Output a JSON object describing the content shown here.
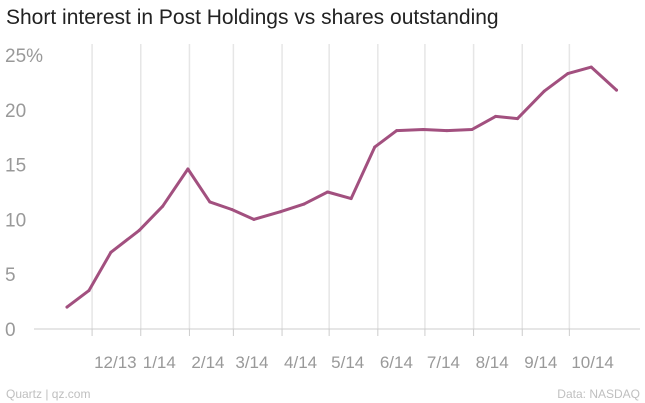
{
  "title": "Short interest in Post Holdings vs shares outstanding",
  "footer": {
    "credit": "Quartz | qz.com",
    "source": "Data: NASDAQ"
  },
  "colors": {
    "line": "#a2507f",
    "grid": "#e6e6e6",
    "axis": "#cccccc",
    "tick_text": "#999999"
  },
  "chart_data": {
    "type": "line",
    "title": "Short interest in Post Holdings vs shares outstanding",
    "xlabel": "",
    "ylabel": "",
    "ylim": [
      0,
      25
    ],
    "y_ticks": [
      {
        "value": 0,
        "label": "0"
      },
      {
        "value": 5,
        "label": "5"
      },
      {
        "value": 10,
        "label": "10"
      },
      {
        "value": 15,
        "label": "15"
      },
      {
        "value": 20,
        "label": "20"
      },
      {
        "value": 25,
        "label": "25%"
      }
    ],
    "x_ticks": [
      {
        "date": "2013-12-01",
        "label": "12/13"
      },
      {
        "date": "2014-01-01",
        "label": "1/14"
      },
      {
        "date": "2014-02-01",
        "label": "2/14"
      },
      {
        "date": "2014-03-01",
        "label": "3/14"
      },
      {
        "date": "2014-04-01",
        "label": "4/14"
      },
      {
        "date": "2014-05-01",
        "label": "5/14"
      },
      {
        "date": "2014-06-01",
        "label": "6/14"
      },
      {
        "date": "2014-07-01",
        "label": "7/14"
      },
      {
        "date": "2014-08-01",
        "label": "8/14"
      },
      {
        "date": "2014-09-01",
        "label": "9/14"
      },
      {
        "date": "2014-10-01",
        "label": "10/14"
      }
    ],
    "xlim": [
      "2013-10-25",
      "2014-11-15"
    ],
    "grid": "vertical",
    "series": [
      {
        "x": [
          "2013-11-15",
          "2013-11-29",
          "2013-12-13",
          "2013-12-31",
          "2014-01-15",
          "2014-01-31",
          "2014-02-14",
          "2014-02-28",
          "2014-03-14",
          "2014-03-31",
          "2014-04-15",
          "2014-04-30",
          "2014-05-15",
          "2014-05-30",
          "2014-06-13",
          "2014-06-30",
          "2014-07-15",
          "2014-07-31",
          "2014-08-15",
          "2014-08-29",
          "2014-09-15",
          "2014-09-30",
          "2014-10-15",
          "2014-10-31"
        ],
        "y": [
          2.0,
          3.5,
          7.0,
          9.0,
          11.2,
          14.6,
          11.6,
          10.9,
          10.0,
          10.7,
          11.4,
          12.5,
          11.9,
          16.6,
          18.1,
          18.2,
          18.1,
          18.2,
          19.4,
          19.2,
          21.7,
          23.3,
          23.9,
          21.8
        ]
      }
    ]
  }
}
